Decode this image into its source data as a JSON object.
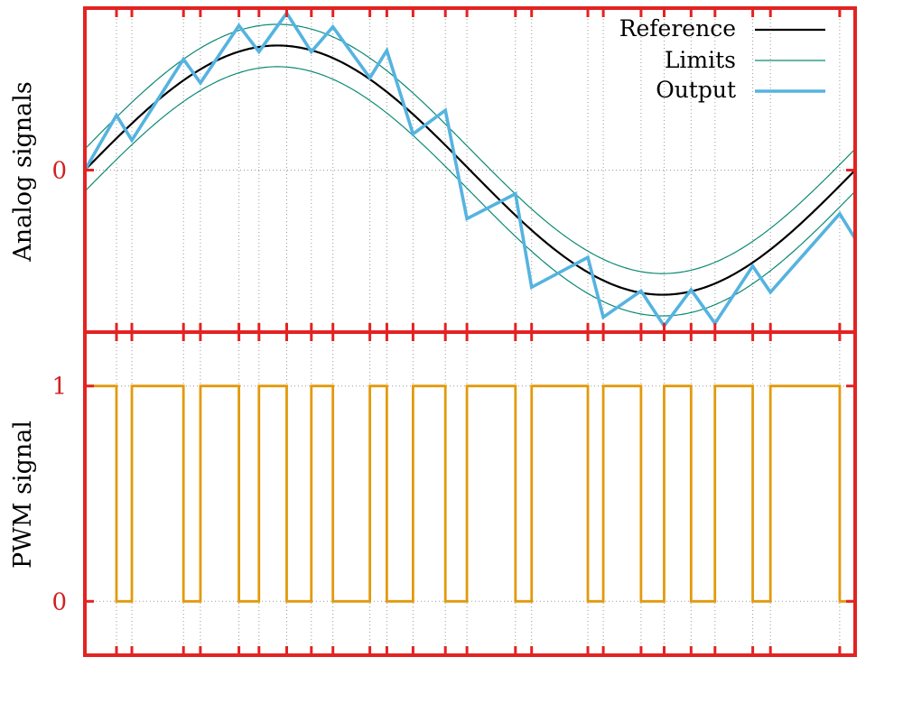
{
  "colors": {
    "frame": "#e32222",
    "tick_label": "#d22020",
    "reference": "#000000",
    "limits": "#0b8a73",
    "output": "#55b3e0",
    "pwm": "#e29a0c"
  },
  "chart_data": [
    {
      "type": "line",
      "ylabel": "Analog signals",
      "xlim": [
        0,
        1
      ],
      "ylim": [
        -1.3,
        1.3
      ],
      "yticks": [
        {
          "value": 0,
          "label": "0"
        }
      ],
      "legend_position": "top-right",
      "grid": true,
      "reference": {
        "name": "Reference",
        "amplitude": 1,
        "period": 1
      },
      "limits": {
        "name": "Limits",
        "offset": 0.17
      },
      "series": [
        {
          "name": "Output",
          "x": [
            0,
            0.041,
            0.061,
            0.128,
            0.15,
            0.2,
            0.226,
            0.262,
            0.294,
            0.322,
            0.37,
            0.392,
            0.426,
            0.468,
            0.496,
            0.559,
            0.58,
            0.653,
            0.673,
            0.722,
            0.752,
            0.787,
            0.818,
            0.867,
            0.89,
            0.98,
            1.0
          ],
          "y": [
            0,
            0.44,
            0.24,
            0.89,
            0.7,
            1.16,
            0.95,
            1.26,
            0.95,
            1.15,
            0.74,
            0.96,
            0.29,
            0.48,
            -0.39,
            -0.19,
            -0.94,
            -0.7,
            -1.18,
            -0.97,
            -1.25,
            -0.96,
            -1.23,
            -0.77,
            -0.98,
            -0.35,
            -0.55
          ]
        }
      ]
    },
    {
      "type": "line",
      "ylabel": "PWM signal",
      "xlim": [
        0,
        1
      ],
      "ylim": [
        -0.25,
        1.25
      ],
      "yticks": [
        {
          "value": 0,
          "label": "0"
        },
        {
          "value": 1,
          "label": "1"
        }
      ],
      "grid": true,
      "series": [
        {
          "name": "",
          "x": [
            0,
            0.041,
            0.041,
            0.061,
            0.061,
            0.128,
            0.128,
            0.15,
            0.15,
            0.2,
            0.2,
            0.226,
            0.226,
            0.262,
            0.262,
            0.294,
            0.294,
            0.322,
            0.322,
            0.37,
            0.37,
            0.392,
            0.392,
            0.426,
            0.426,
            0.468,
            0.468,
            0.496,
            0.496,
            0.559,
            0.559,
            0.58,
            0.58,
            0.653,
            0.653,
            0.673,
            0.673,
            0.722,
            0.722,
            0.752,
            0.752,
            0.787,
            0.787,
            0.818,
            0.818,
            0.867,
            0.867,
            0.89,
            0.89,
            0.98,
            0.98,
            1.0
          ],
          "y": [
            1,
            1,
            0,
            0,
            1,
            1,
            0,
            0,
            1,
            1,
            0,
            0,
            1,
            1,
            0,
            0,
            1,
            1,
            0,
            0,
            1,
            1,
            0,
            0,
            1,
            1,
            0,
            0,
            1,
            1,
            0,
            0,
            1,
            1,
            0,
            0,
            1,
            1,
            0,
            0,
            1,
            1,
            0,
            0,
            1,
            1,
            0,
            0,
            1,
            1,
            0,
            0
          ]
        }
      ]
    }
  ],
  "x_grid": [
    0.041,
    0.061,
    0.128,
    0.15,
    0.2,
    0.226,
    0.262,
    0.294,
    0.322,
    0.37,
    0.392,
    0.426,
    0.468,
    0.496,
    0.559,
    0.58,
    0.653,
    0.673,
    0.722,
    0.752,
    0.787,
    0.818,
    0.867,
    0.89,
    0.98
  ]
}
